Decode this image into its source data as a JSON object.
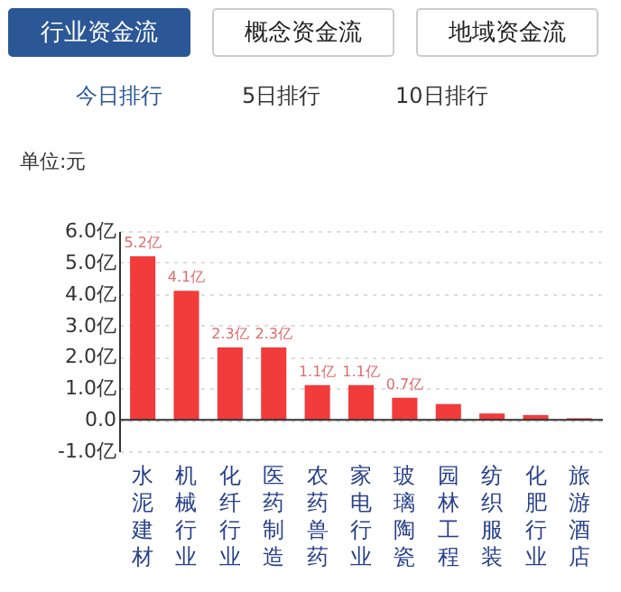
{
  "chart_data": {
    "type": "bar",
    "ylabel": "单位:元",
    "annotations": [
      "行业资金流",
      "概念资金流",
      "地域资金流",
      "今日排行",
      "5日排行",
      "10日排行"
    ],
    "categories": [
      "水泥建材",
      "机械行业",
      "化纤行业",
      "医药制造",
      "农药兽药",
      "家电行业",
      "玻璃陶瓷",
      "园林工程",
      "纺织服装",
      "化肥行业",
      "旅游酒店"
    ],
    "values": [
      5.2,
      4.1,
      2.3,
      2.3,
      1.1,
      1.1,
      0.7,
      0.5,
      0.2,
      0.15,
      0.05
    ],
    "value_labels": [
      "5.2亿",
      "4.1亿",
      "2.3亿",
      "2.3亿",
      "1.1亿",
      "1.1亿",
      "0.7亿",
      null,
      null,
      null,
      null
    ],
    "color": "#f23b3b",
    "ylim": [
      -1,
      6
    ],
    "yticks": [
      {
        "value": -1,
        "label": "-1.0亿"
      },
      {
        "value": 0,
        "label": "0.0"
      },
      {
        "value": 1,
        "label": "1.0亿"
      },
      {
        "value": 2,
        "label": "2.0亿"
      },
      {
        "value": 3,
        "label": "3.0亿"
      },
      {
        "value": 4,
        "label": "4.0亿"
      },
      {
        "value": 5,
        "label": "5.0亿"
      },
      {
        "value": 6,
        "label": "6.0亿"
      }
    ],
    "grid": "y"
  }
}
